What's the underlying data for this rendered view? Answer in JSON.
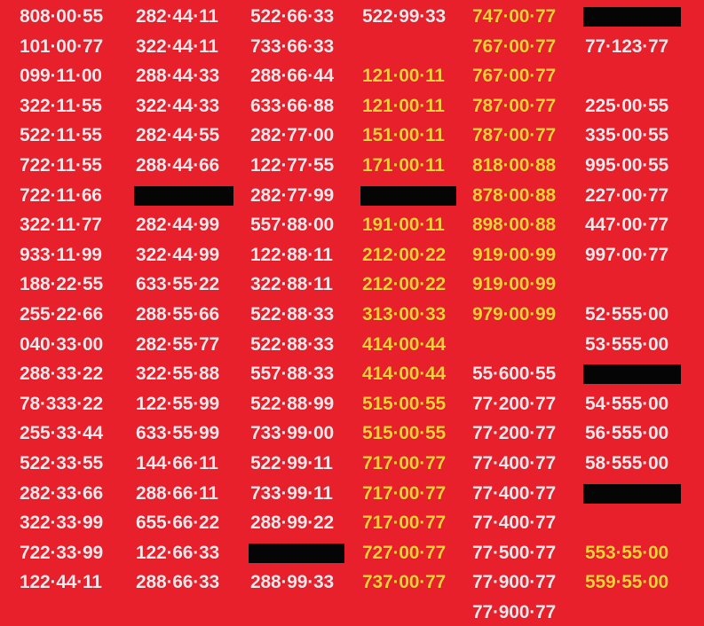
{
  "colors": {
    "background": "#e8202b",
    "white": "#f8e6ea",
    "yellow": "#f8cf3a",
    "redaction": "#050505"
  },
  "rows": [
    [
      {
        "text": "808·00·55"
      },
      {
        "text": "282·44·11"
      },
      {
        "text": "522·66·33"
      },
      {
        "text": "522·99·33"
      },
      {
        "text": "747·00·77",
        "style": "yellow"
      },
      {
        "redacted": true
      }
    ],
    [
      {
        "text": "101·00·77"
      },
      {
        "text": "322·44·11"
      },
      {
        "text": "733·66·33"
      },
      {},
      {
        "text": "767·00·77",
        "style": "yellow"
      },
      {
        "text": "77·123·77"
      }
    ],
    [
      {
        "text": "099·11·00"
      },
      {
        "text": "288·44·33"
      },
      {
        "text": "288·66·44"
      },
      {
        "text": "121·00·11",
        "style": "yellow"
      },
      {
        "text": "767·00·77",
        "style": "yellow"
      },
      {}
    ],
    [
      {
        "text": "322·11·55"
      },
      {
        "text": "322·44·33"
      },
      {
        "text": "633·66·88"
      },
      {
        "text": "121·00·11",
        "style": "yellow"
      },
      {
        "text": "787·00·77",
        "style": "yellow"
      },
      {
        "text": "225·00·55"
      }
    ],
    [
      {
        "text": "522·11·55"
      },
      {
        "text": "282·44·55"
      },
      {
        "text": "282·77·00"
      },
      {
        "text": "151·00·11",
        "style": "yellow"
      },
      {
        "text": "787·00·77",
        "style": "yellow"
      },
      {
        "text": "335·00·55"
      }
    ],
    [
      {
        "text": "722·11·55"
      },
      {
        "text": "288·44·66"
      },
      {
        "text": "122·77·55"
      },
      {
        "text": "171·00·11",
        "style": "yellow"
      },
      {
        "text": "818·00·88",
        "style": "yellow"
      },
      {
        "text": "995·00·55"
      }
    ],
    [
      {
        "text": "722·11·66"
      },
      {
        "redacted": true
      },
      {
        "text": "282·77·99"
      },
      {
        "redacted": true
      },
      {
        "text": "878·00·88",
        "style": "yellow"
      },
      {
        "text": "227·00·77"
      }
    ],
    [
      {
        "text": "322·11·77"
      },
      {
        "text": "282·44·99"
      },
      {
        "text": "557·88·00"
      },
      {
        "text": "191·00·11",
        "style": "yellow"
      },
      {
        "text": "898·00·88",
        "style": "yellow"
      },
      {
        "text": "447·00·77"
      }
    ],
    [
      {
        "text": "933·11·99"
      },
      {
        "text": "322·44·99"
      },
      {
        "text": "122·88·11"
      },
      {
        "text": "212·00·22",
        "style": "yellow"
      },
      {
        "text": "919·00·99",
        "style": "yellow"
      },
      {
        "text": "997·00·77"
      }
    ],
    [
      {
        "text": "188·22·55"
      },
      {
        "text": "633·55·22"
      },
      {
        "text": "322·88·11"
      },
      {
        "text": "212·00·22",
        "style": "yellow"
      },
      {
        "text": "919·00·99",
        "style": "yellow"
      },
      {}
    ],
    [
      {
        "text": "255·22·66"
      },
      {
        "text": "288·55·66"
      },
      {
        "text": "522·88·33"
      },
      {
        "text": "313·00·33",
        "style": "yellow"
      },
      {
        "text": "979·00·99",
        "style": "yellow"
      },
      {
        "text": "52·555·00"
      }
    ],
    [
      {
        "text": "040·33·00"
      },
      {
        "text": "282·55·77"
      },
      {
        "text": "522·88·33"
      },
      {
        "text": "414·00·44",
        "style": "yellow"
      },
      {},
      {
        "text": "53·555·00"
      }
    ],
    [
      {
        "text": "288·33·22"
      },
      {
        "text": "322·55·88"
      },
      {
        "text": "557·88·33"
      },
      {
        "text": "414·00·44",
        "style": "yellow"
      },
      {
        "text": "55·600·55"
      },
      {
        "redacted": true
      }
    ],
    [
      {
        "text": "78·333·22"
      },
      {
        "text": "122·55·99"
      },
      {
        "text": "522·88·99"
      },
      {
        "text": "515·00·55",
        "style": "yellow"
      },
      {
        "text": "77·200·77"
      },
      {
        "text": "54·555·00"
      }
    ],
    [
      {
        "text": "255·33·44"
      },
      {
        "text": "633·55·99"
      },
      {
        "text": "733·99·00"
      },
      {
        "text": "515·00·55",
        "style": "yellow"
      },
      {
        "text": "77·200·77"
      },
      {
        "text": "56·555·00"
      }
    ],
    [
      {
        "text": "522·33·55"
      },
      {
        "text": "144·66·11"
      },
      {
        "text": "522·99·11"
      },
      {
        "text": "717·00·77",
        "style": "yellow"
      },
      {
        "text": "77·400·77"
      },
      {
        "text": "58·555·00"
      }
    ],
    [
      {
        "text": "282·33·66"
      },
      {
        "text": "288·66·11"
      },
      {
        "text": "733·99·11"
      },
      {
        "text": "717·00·77",
        "style": "yellow"
      },
      {
        "text": "77·400·77"
      },
      {
        "redacted": true
      }
    ],
    [
      {
        "text": "322·33·99"
      },
      {
        "text": "655·66·22"
      },
      {
        "text": "288·99·22"
      },
      {
        "text": "717·00·77",
        "style": "yellow"
      },
      {
        "text": "77·400·77"
      },
      {}
    ],
    [
      {
        "text": "722·33·99"
      },
      {
        "text": "122·66·33"
      },
      {
        "redacted": true
      },
      {
        "text": "727·00·77",
        "style": "yellow"
      },
      {
        "text": "77·500·77"
      },
      {
        "text": "553·55·00",
        "style": "yellow"
      }
    ],
    [
      {
        "text": "122·44·11"
      },
      {
        "text": "288·66·33"
      },
      {
        "text": "288·99·33"
      },
      {
        "text": "737·00·77",
        "style": "yellow"
      },
      {
        "text": "77·900·77"
      },
      {
        "text": "559·55·00",
        "style": "yellow"
      }
    ],
    [
      {},
      {},
      {},
      {},
      {
        "text": "77·900·77"
      },
      {}
    ]
  ]
}
